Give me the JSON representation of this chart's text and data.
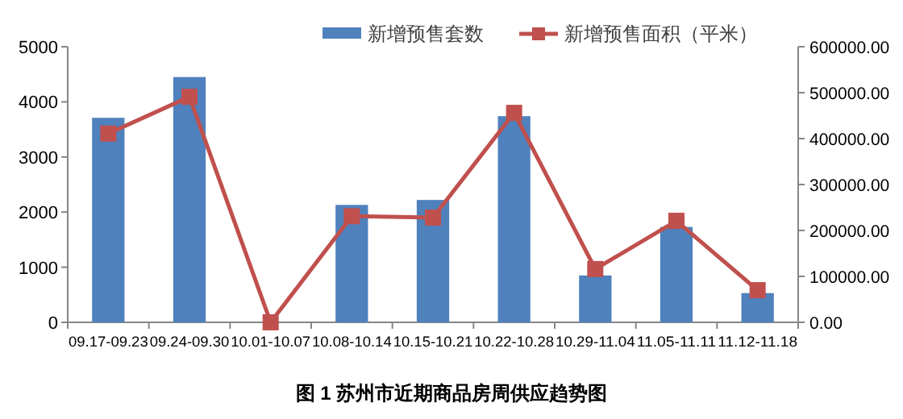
{
  "chart_data": {
    "type": "bar",
    "title": "图 1 苏州市近期商品房周供应趋势图",
    "categories": [
      "09.17-09.23",
      "09.24-09.30",
      "10.01-10.07",
      "10.08-10.14",
      "10.15-10.21",
      "10.22-10.28",
      "10.29-11.04",
      "11.05-11.11",
      "11.12-11.18"
    ],
    "series": [
      {
        "name": "新增预售套数",
        "color": "#4f81bd",
        "values": [
          3710,
          4450,
          0,
          2130,
          2220,
          3740,
          850,
          1730,
          530
        ]
      },
      {
        "name": "新增预售面积（平米）",
        "type": "line",
        "axis": "y2",
        "color": "#c0504d",
        "marker": "square",
        "values": [
          411000,
          491000,
          0,
          231000,
          228000,
          456000,
          116000,
          221000,
          70000
        ]
      }
    ],
    "ylim": [
      0,
      5000
    ],
    "yticks": [
      0,
      1000,
      2000,
      3000,
      4000,
      5000
    ],
    "y2lim": [
      0,
      600000
    ],
    "y2ticks": [
      {
        "value": 0,
        "label": "0.00"
      },
      {
        "value": 100000,
        "label": "100000.00"
      },
      {
        "value": 200000,
        "label": "200000.00"
      },
      {
        "value": 300000,
        "label": "300000.00"
      },
      {
        "value": 400000,
        "label": "400000.00"
      },
      {
        "value": 500000,
        "label": "500000.00"
      },
      {
        "value": 600000,
        "label": "600000.00"
      }
    ],
    "grid": false,
    "legend": "top"
  }
}
